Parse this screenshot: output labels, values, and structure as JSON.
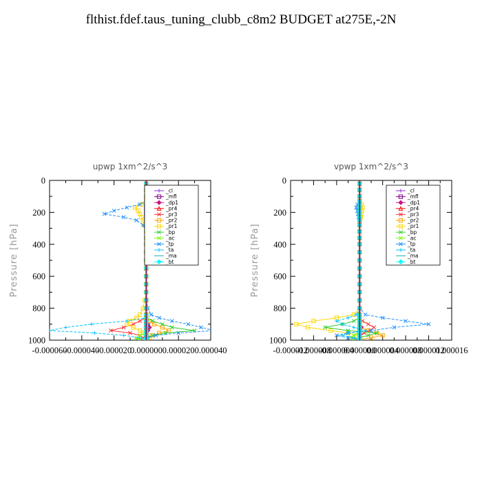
{
  "figure": {
    "title": "flthist.fdef.taus_tuning_clubb_c8m2  BUDGET at275E,-2N"
  },
  "chart_data": [
    {
      "type": "line",
      "title": "upwp   1xm^2/s^3",
      "ylabel": "Pressure [hPa]",
      "ylim": [
        1000,
        0
      ],
      "y_ticks": [
        0,
        200,
        400,
        600,
        800,
        1000
      ],
      "x_tick_labels": [
        "-0.000060",
        "-0.000040",
        "-0.000020",
        "0.000000",
        "0.000020",
        "0.000040"
      ],
      "x_ticks": [
        -6e-05,
        -4e-05,
        -2e-05,
        0,
        2e-05,
        4e-05
      ],
      "xlim": [
        -6e-05,
        4e-05
      ],
      "legend_position": "upper-right",
      "pressure_levels": [
        20,
        60,
        100,
        130,
        150,
        170,
        190,
        210,
        230,
        250,
        280,
        320,
        360,
        400,
        450,
        500,
        550,
        600,
        650,
        700,
        750,
        800,
        840,
        860,
        880,
        900,
        920,
        940,
        955,
        970,
        985,
        995
      ],
      "series": [
        {
          "name": "_cl",
          "color": "#8a2be2",
          "marker": "+",
          "values": [
            0,
            0,
            0,
            0,
            0,
            0,
            0,
            0,
            0,
            0,
            0,
            0,
            0,
            0,
            0,
            0,
            0,
            0,
            0,
            0,
            0,
            0,
            0,
            0,
            0,
            0,
            0,
            0,
            0,
            0,
            0,
            0
          ]
        },
        {
          "name": "_mfl",
          "color": "#800080",
          "marker": "square",
          "values": [
            0,
            0,
            0,
            0,
            0,
            0,
            0,
            0,
            0,
            0,
            0,
            0,
            0,
            0,
            0,
            0,
            0,
            0,
            0,
            0,
            0,
            0,
            0,
            0,
            0,
            0,
            0,
            0,
            0,
            0,
            0,
            0
          ]
        },
        {
          "name": "_dp1",
          "color": "#c71585",
          "marker": "diamond",
          "values": [
            0,
            0,
            0,
            0,
            0,
            0,
            0,
            0,
            0,
            0,
            0,
            0,
            0,
            0,
            0,
            0,
            0,
            0,
            0,
            0,
            0,
            0,
            0,
            0,
            0,
            1e-06,
            2e-06,
            1e-06,
            0,
            0,
            0,
            0
          ]
        },
        {
          "name": "_pr4",
          "color": "#ff0000",
          "marker": "triangle",
          "values": [
            0,
            0,
            0,
            0,
            0,
            0,
            0,
            0,
            0,
            0,
            0,
            0,
            0,
            0,
            0,
            0,
            0,
            0,
            0,
            0,
            0,
            0,
            0,
            0,
            0,
            0,
            0,
            0,
            0,
            0,
            0,
            0
          ]
        },
        {
          "name": "_pr3",
          "color": "#ff3030",
          "marker": "x",
          "values": [
            0,
            0,
            0,
            0,
            1e-06,
            2e-06,
            1e-06,
            0,
            0,
            0,
            0,
            0,
            0,
            0,
            0,
            0,
            0,
            0,
            0,
            0,
            0,
            0,
            0,
            0,
            -4e-06,
            -8e-06,
            -1.4e-05,
            -2.2e-05,
            -1e-05,
            -4e-06,
            -2e-06,
            0
          ]
        },
        {
          "name": "_pr2",
          "color": "#ffa500",
          "marker": "square",
          "values": [
            0,
            0,
            0,
            0,
            1e-06,
            3e-06,
            5e-06,
            4e-06,
            2e-06,
            1e-06,
            0,
            0,
            0,
            0,
            0,
            0,
            0,
            0,
            0,
            0,
            0,
            0,
            0,
            0,
            2e-06,
            5e-06,
            1e-05,
            1.4e-05,
            8e-06,
            4e-06,
            2e-06,
            0
          ]
        },
        {
          "name": "_pr1",
          "color": "#ffd700",
          "marker": "square",
          "values": [
            0,
            0,
            0,
            0,
            -3e-06,
            -7e-06,
            -5e-06,
            -4e-06,
            -3e-06,
            -2e-06,
            -1e-06,
            0,
            0,
            0,
            0,
            0,
            0,
            0,
            0,
            0,
            -1e-06,
            -2e-06,
            -4e-06,
            -6e-06,
            -1e-05,
            -1.2e-05,
            -8e-06,
            -4e-06,
            -2e-06,
            1e-06,
            2e-06,
            0
          ]
        },
        {
          "name": "_bp",
          "color": "#32cd32",
          "marker": "x",
          "values": [
            0,
            0,
            0,
            0,
            0,
            0,
            0,
            0,
            0,
            0,
            0,
            0,
            0,
            0,
            0,
            0,
            0,
            0,
            0,
            0,
            0,
            0,
            0,
            0,
            4e-06,
            1e-05,
            1.6e-05,
            3e-05,
            1.2e-05,
            4e-06,
            0,
            -6e-06
          ]
        },
        {
          "name": "_ac",
          "color": "#7cfc00",
          "marker": "x",
          "values": [
            0,
            0,
            0,
            0,
            0,
            0,
            0,
            0,
            0,
            0,
            0,
            0,
            0,
            0,
            0,
            0,
            0,
            0,
            0,
            0,
            0,
            0,
            0,
            0,
            0,
            0,
            0,
            0,
            0,
            -4e-06,
            -6e-06,
            -4e-06
          ]
        },
        {
          "name": "_tp",
          "color": "#1e90ff",
          "marker": "x",
          "values": [
            0,
            0,
            0,
            0,
            -4e-06,
            -1.2e-05,
            -2e-05,
            -2.6e-05,
            -1.4e-05,
            -6e-06,
            -2e-06,
            0,
            1e-06,
            0,
            0,
            0,
            0,
            0,
            0,
            0,
            0,
            1e-06,
            3e-06,
            8e-06,
            1.6e-05,
            2.6e-05,
            3.4e-05,
            4.2e-05,
            2e-05,
            6e-06,
            1e-06,
            0
          ]
        },
        {
          "name": "_ta",
          "color": "#00bfff",
          "marker": "+",
          "values": [
            0,
            0,
            0,
            0,
            0,
            0,
            0,
            0,
            0,
            0,
            0,
            0,
            0,
            0,
            0,
            0,
            0,
            0,
            0,
            0,
            0,
            0,
            0,
            0,
            -1.2e-05,
            -3.4e-05,
            -5e-05,
            -6e-05,
            -3.2e-05,
            -1.4e-05,
            -4e-06,
            0
          ]
        },
        {
          "name": "_ma",
          "color": "#20b2aa",
          "marker": "none",
          "values": [
            0,
            0,
            0,
            0,
            0,
            0,
            0,
            0,
            0,
            0,
            0,
            0,
            0,
            0,
            0,
            0,
            0,
            0,
            0,
            0,
            0,
            0,
            0,
            0,
            0,
            0,
            0,
            0,
            0,
            0,
            0,
            0
          ]
        },
        {
          "name": "_bt",
          "color": "#00ffff",
          "marker": "diamond",
          "values": [
            0,
            0,
            0,
            0,
            0,
            0,
            0,
            0,
            0,
            0,
            0,
            0,
            0,
            0,
            0,
            0,
            0,
            0,
            0,
            0,
            0,
            0,
            0,
            0,
            0,
            0,
            0,
            0,
            0,
            0,
            0,
            0
          ]
        }
      ]
    },
    {
      "type": "line",
      "title": "vpwp   1xm^2/s^3",
      "ylabel": "Pressure [hPa]",
      "ylim": [
        1000,
        0
      ],
      "y_ticks": [
        0,
        200,
        400,
        600,
        800,
        1000
      ],
      "x_tick_labels": [
        "-0.000012",
        "-0.000008",
        "-0.000004",
        "0.000000",
        "0.000004",
        "0.000008",
        "0.000012",
        "0.000016"
      ],
      "x_ticks": [
        -1.2e-05,
        -8e-06,
        -4e-06,
        0,
        4e-06,
        8e-06,
        1.2e-05,
        1.6e-05
      ],
      "xlim": [
        -1.2e-05,
        1.6e-05
      ],
      "legend_position": "upper-right",
      "pressure_levels": [
        20,
        60,
        100,
        130,
        150,
        170,
        190,
        210,
        230,
        250,
        280,
        320,
        360,
        400,
        450,
        500,
        550,
        600,
        650,
        700,
        750,
        800,
        840,
        860,
        880,
        900,
        920,
        940,
        955,
        970,
        985,
        995
      ],
      "series": [
        {
          "name": "_cl",
          "color": "#8a2be2",
          "marker": "+",
          "values": [
            0,
            0,
            0,
            0,
            0,
            0,
            0,
            0,
            0,
            0,
            0,
            0,
            0,
            0,
            0,
            0,
            0,
            0,
            0,
            0,
            0,
            0,
            0,
            0,
            0,
            0,
            0,
            0,
            0,
            0,
            0,
            0
          ]
        },
        {
          "name": "_mfl",
          "color": "#800080",
          "marker": "square",
          "values": [
            0,
            0,
            0,
            0,
            0,
            0,
            0,
            0,
            0,
            0,
            0,
            0,
            0,
            0,
            0,
            0,
            0,
            0,
            0,
            0,
            0,
            0,
            0,
            0,
            0,
            0,
            0,
            0,
            0,
            0,
            0,
            0
          ]
        },
        {
          "name": "_dp1",
          "color": "#c71585",
          "marker": "diamond",
          "values": [
            0,
            0,
            0,
            0,
            0,
            0,
            0,
            0,
            0,
            0,
            0,
            0,
            0,
            0,
            0,
            0,
            0,
            0,
            0,
            0,
            0,
            0,
            0,
            0,
            0,
            0,
            3e-07,
            0,
            0,
            0,
            0,
            0
          ]
        },
        {
          "name": "_pr4",
          "color": "#ff0000",
          "marker": "triangle",
          "values": [
            0,
            0,
            0,
            0,
            0,
            0,
            0,
            0,
            0,
            0,
            0,
            0,
            0,
            0,
            0,
            0,
            0,
            0,
            0,
            0,
            0,
            0,
            0,
            0,
            0,
            0,
            0,
            0,
            0,
            0,
            0,
            0
          ]
        },
        {
          "name": "_pr3",
          "color": "#ff3030",
          "marker": "x",
          "values": [
            0,
            0,
            0,
            0,
            0,
            0,
            0,
            0,
            0,
            0,
            0,
            0,
            0,
            0,
            0,
            0,
            0,
            0,
            0,
            0,
            0,
            0,
            0,
            0,
            5e-07,
            1.5e-06,
            2.5e-06,
            1.8e-06,
            8e-07,
            2e-07,
            0,
            0
          ]
        },
        {
          "name": "_pr2",
          "color": "#ffa500",
          "marker": "square",
          "values": [
            0,
            0,
            0,
            0,
            0,
            0,
            0,
            0,
            0,
            0,
            0,
            0,
            0,
            0,
            0,
            0,
            0,
            0,
            0,
            0,
            0,
            0,
            0,
            0,
            0,
            0,
            0,
            1.5e-06,
            3e-06,
            4e-06,
            2e-06,
            0
          ]
        },
        {
          "name": "_pr1",
          "color": "#ffd700",
          "marker": "square",
          "values": [
            0,
            0,
            0,
            0,
            3e-07,
            5e-07,
            4e-07,
            3e-07,
            2e-07,
            0,
            0,
            0,
            0,
            0,
            0,
            0,
            0,
            0,
            0,
            0,
            0,
            0,
            -1e-06,
            -4e-06,
            -8e-06,
            -1.1e-05,
            -9e-06,
            -5e-06,
            -2e-06,
            -5e-07,
            0,
            0
          ]
        },
        {
          "name": "_bp",
          "color": "#32cd32",
          "marker": "x",
          "values": [
            0,
            0,
            0,
            0,
            0,
            0,
            0,
            0,
            0,
            0,
            0,
            0,
            0,
            0,
            0,
            0,
            0,
            0,
            0,
            0,
            0,
            0,
            0,
            0,
            -1e-06,
            -3e-06,
            -6e-06,
            -2e-06,
            3e-06,
            1.5e-06,
            0,
            -1e-06
          ]
        },
        {
          "name": "_ac",
          "color": "#7cfc00",
          "marker": "x",
          "values": [
            0,
            0,
            0,
            0,
            0,
            0,
            0,
            0,
            0,
            0,
            0,
            0,
            0,
            0,
            0,
            0,
            0,
            0,
            0,
            0,
            0,
            0,
            0,
            0,
            0,
            0,
            0,
            0,
            0,
            -1e-06,
            -2e-06,
            -1e-06
          ]
        },
        {
          "name": "_tp",
          "color": "#1e90ff",
          "marker": "x",
          "values": [
            0,
            0,
            0,
            0,
            -4e-07,
            -6e-07,
            -4e-07,
            -3e-07,
            -2e-07,
            0,
            0,
            0,
            0,
            0,
            0,
            0,
            0,
            0,
            0,
            0,
            0,
            0,
            1e-06,
            4e-06,
            8e-06,
            1.2e-05,
            6e-06,
            2e-06,
            -2e-06,
            -4e-06,
            -2e-06,
            0
          ]
        },
        {
          "name": "_ta",
          "color": "#00bfff",
          "marker": "+",
          "values": [
            0,
            0,
            0,
            0,
            0,
            0,
            0,
            0,
            0,
            0,
            0,
            0,
            0,
            0,
            0,
            0,
            0,
            0,
            0,
            0,
            0,
            0,
            -5e-07,
            -2e-06,
            -4e-06,
            -3e-06,
            -1e-06,
            1e-06,
            -2e-06,
            -3e-06,
            -1e-06,
            0
          ]
        },
        {
          "name": "_ma",
          "color": "#20b2aa",
          "marker": "none",
          "values": [
            0,
            0,
            0,
            0,
            0,
            0,
            0,
            0,
            0,
            0,
            0,
            0,
            0,
            0,
            0,
            0,
            0,
            0,
            0,
            0,
            0,
            0,
            0,
            0,
            0,
            0,
            0,
            0,
            0,
            0,
            0,
            0
          ]
        },
        {
          "name": "_bt",
          "color": "#00ffff",
          "marker": "diamond",
          "values": [
            0,
            0,
            0,
            0,
            0,
            0,
            0,
            0,
            0,
            0,
            0,
            0,
            0,
            0,
            0,
            0,
            0,
            0,
            0,
            0,
            0,
            0,
            0,
            0,
            0,
            0,
            0,
            0,
            0,
            0,
            0,
            0
          ]
        }
      ]
    }
  ]
}
